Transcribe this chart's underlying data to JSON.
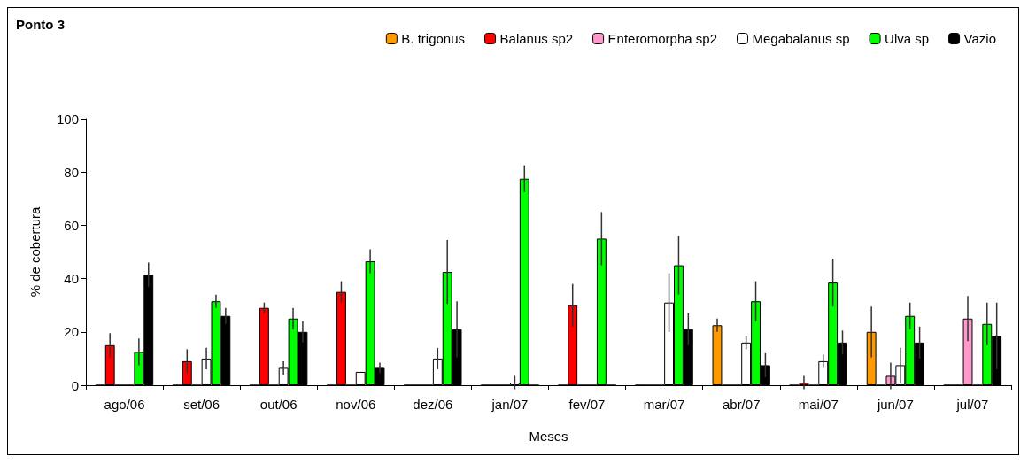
{
  "chart_data": {
    "type": "bar",
    "title": "Ponto 3",
    "xlabel": "Meses",
    "ylabel": "% de cobertura",
    "categories": [
      "ago/06",
      "set/06",
      "out/06",
      "nov/06",
      "dez/06",
      "jan/07",
      "fev/07",
      "mar/07",
      "abr/07",
      "mai/07",
      "jun/07",
      "jul/07"
    ],
    "series": [
      {
        "name": "B. trigonus",
        "color": "#ff9900",
        "values": [
          0,
          0,
          0,
          0,
          0,
          0,
          0,
          0,
          22.5,
          0,
          20,
          0
        ],
        "errors": [
          null,
          null,
          null,
          null,
          null,
          null,
          null,
          null,
          2.5,
          null,
          9.5,
          null
        ]
      },
      {
        "name": "Balanus sp2",
        "color": "#ff0000",
        "values": [
          15,
          9,
          29,
          35,
          0,
          0,
          30,
          0,
          0,
          1,
          0,
          0
        ],
        "errors": [
          4.5,
          4.5,
          2,
          4,
          null,
          null,
          8,
          null,
          null,
          2.5,
          null,
          null
        ]
      },
      {
        "name": "Enteromorpha sp2",
        "color": "#ff99cc",
        "values": [
          0,
          0,
          0,
          0,
          0,
          0,
          0,
          0,
          0,
          0,
          3.5,
          25
        ],
        "errors": [
          null,
          null,
          null,
          null,
          null,
          null,
          null,
          null,
          null,
          null,
          5,
          8.5
        ]
      },
      {
        "name": "Megabalanus sp",
        "color": "#ffffff",
        "values": [
          0,
          10,
          6.5,
          5,
          10,
          1,
          0,
          31,
          16,
          9,
          7.5,
          0
        ],
        "errors": [
          null,
          4,
          2.5,
          null,
          4,
          2.5,
          null,
          11,
          2.5,
          2.5,
          6.5,
          null
        ]
      },
      {
        "name": "Ulva sp",
        "color": "#00ff00",
        "values": [
          12.5,
          31.5,
          25,
          46.5,
          42.5,
          77.5,
          55,
          45,
          31.5,
          38.5,
          26,
          23
        ],
        "errors": [
          5,
          2.5,
          4,
          4.5,
          12,
          5,
          10,
          11,
          7.5,
          9,
          5,
          8
        ]
      },
      {
        "name": "Vazio",
        "color": "#000000",
        "values": [
          41.5,
          26,
          20,
          6.5,
          21,
          0,
          0,
          21,
          7.5,
          16,
          16,
          18.5
        ],
        "errors": [
          4.5,
          3,
          4,
          2,
          10.5,
          null,
          null,
          6,
          4.5,
          4.5,
          6,
          12.5
        ]
      }
    ],
    "ylim": [
      0,
      100
    ],
    "yticks": [
      0,
      20,
      40,
      60,
      80,
      100
    ],
    "grid": false,
    "legend": "top right"
  }
}
